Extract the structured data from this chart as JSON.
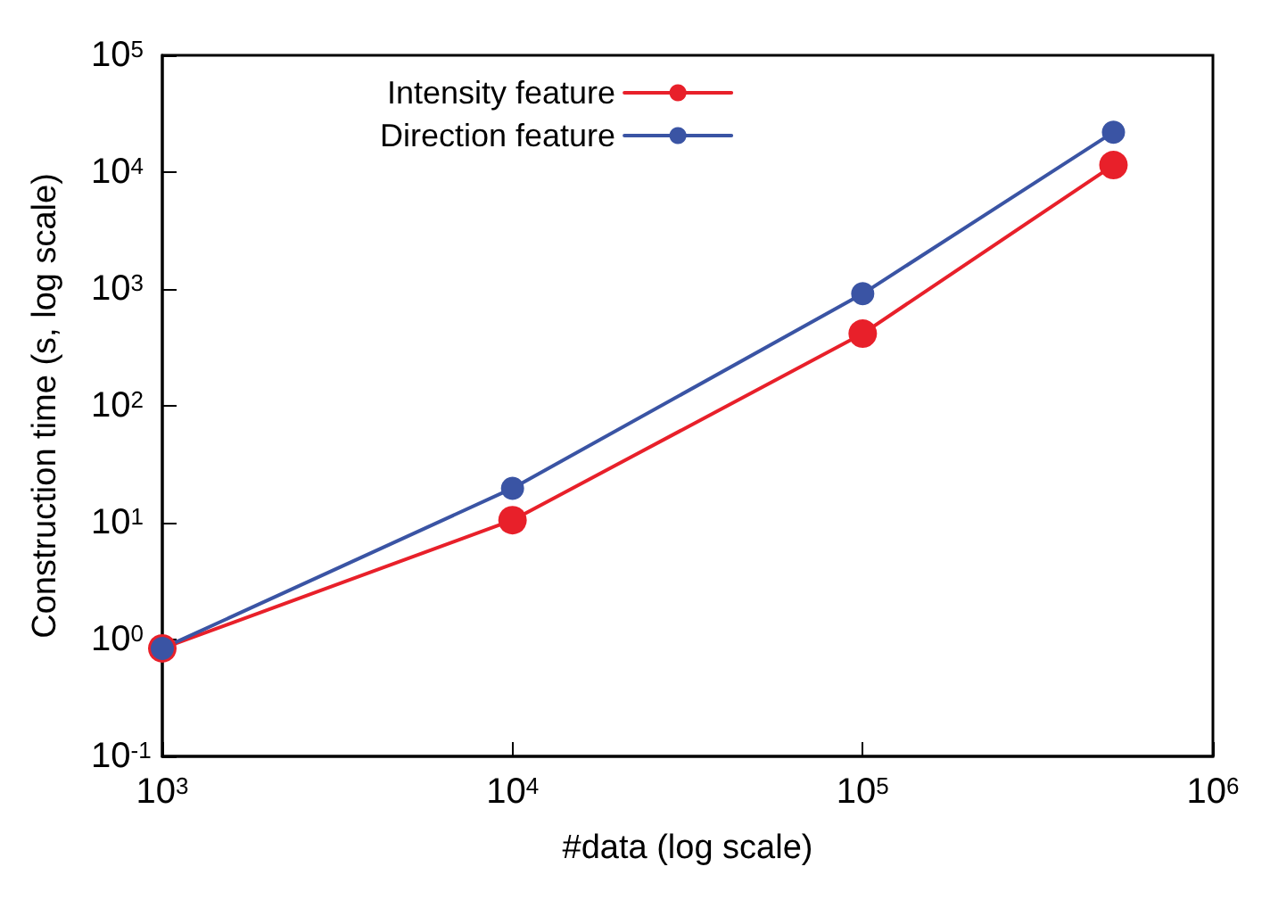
{
  "chart_data": {
    "type": "line",
    "xlabel": "#data (log scale)",
    "ylabel": "Construction time (s, log scale)",
    "log": "xy",
    "grid": false,
    "legend": "top",
    "marker": "circle",
    "line_style": "solid",
    "x": [
      1000,
      10000,
      100000,
      520000
    ],
    "xlim": [
      1000,
      1000000
    ],
    "xticks": [
      {
        "value": 1000,
        "label": "10$^{3}$"
      },
      {
        "value": 10000,
        "label": "10$^{4}$"
      },
      {
        "value": 100000,
        "label": "10$^{5}$"
      },
      {
        "value": 1000000,
        "label": "10$^{6}$"
      }
    ],
    "ylim": [
      0.1,
      100000
    ],
    "yticks": [
      {
        "value": 0.1,
        "label": "10$^{-1}$"
      },
      {
        "value": 1,
        "label": "10$^{0}$"
      },
      {
        "value": 10,
        "label": "10$^{1}$"
      },
      {
        "value": 100,
        "label": "10$^{2}$"
      },
      {
        "value": 1000,
        "label": "10$^{3}$"
      },
      {
        "value": 10000,
        "label": "10$^{4}$"
      },
      {
        "value": 100000,
        "label": "10$^{5}$"
      }
    ],
    "series": [
      {
        "name": "Intensity feature",
        "color": "#e8202a",
        "values": [
          0.84,
          10.5,
          415,
          11500
        ]
      },
      {
        "name": "Direction feature",
        "color": "#3a54a4",
        "values": [
          0.84,
          19.7,
          910,
          22000
        ]
      }
    ]
  }
}
